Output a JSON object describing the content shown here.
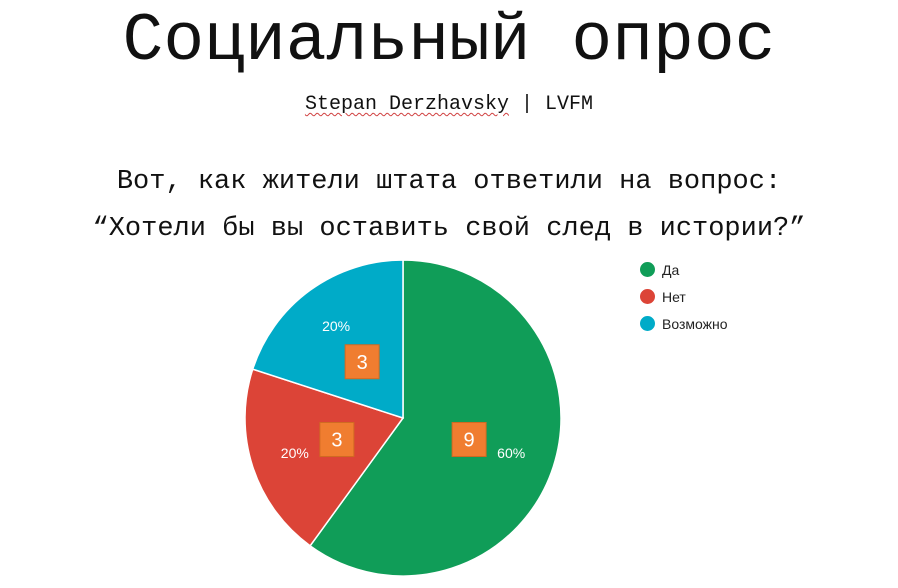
{
  "header": {
    "title": "Социальный опрос",
    "author": "Stepan Derzhavsky",
    "separator": " | ",
    "org": "LVFM"
  },
  "question": {
    "line1": "Вот, как жители штата ответили на вопрос:",
    "line2": "“Хотели бы вы оставить свой след в истории?”"
  },
  "chart_data": {
    "type": "pie",
    "categories": [
      "Да",
      "Нет",
      "Возможно"
    ],
    "values": [
      9,
      3,
      3
    ],
    "percent_labels": [
      "60%",
      "20%",
      "20%"
    ],
    "colors": [
      "#109d58",
      "#dc4437",
      "#00abc8"
    ],
    "count_badge_color": "#f07d30",
    "legend_position": "right"
  }
}
